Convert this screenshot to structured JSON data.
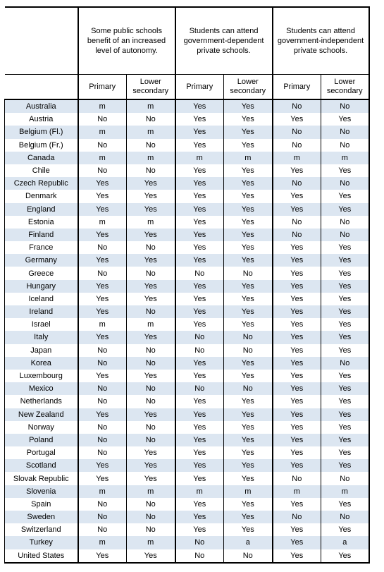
{
  "headers": {
    "groups": [
      "Some public schools benefit of an increased level of autonomy.",
      "Students can attend government-dependent private schools.",
      "Students can attend government-independent private schools."
    ],
    "sub": [
      "Primary",
      "Lower secondary",
      "Primary",
      "Lower secondary",
      "Primary",
      "Lower secondary"
    ]
  },
  "rows": [
    {
      "country": "Australia",
      "values": [
        "m",
        "m",
        "Yes",
        "Yes",
        "No",
        "No"
      ]
    },
    {
      "country": "Austria",
      "values": [
        "No",
        "No",
        "Yes",
        "Yes",
        "Yes",
        "Yes"
      ]
    },
    {
      "country": "Belgium (Fl.)",
      "values": [
        "m",
        "m",
        "Yes",
        "Yes",
        "No",
        "No"
      ]
    },
    {
      "country": "Belgium (Fr.)",
      "values": [
        "No",
        "No",
        "Yes",
        "Yes",
        "No",
        "No"
      ]
    },
    {
      "country": "Canada",
      "values": [
        "m",
        "m",
        "m",
        "m",
        "m",
        "m"
      ]
    },
    {
      "country": "Chile",
      "values": [
        "No",
        "No",
        "Yes",
        "Yes",
        "Yes",
        "Yes"
      ]
    },
    {
      "country": "Czech Republic",
      "values": [
        "Yes",
        "Yes",
        "Yes",
        "Yes",
        "No",
        "No"
      ]
    },
    {
      "country": "Denmark",
      "values": [
        "Yes",
        "Yes",
        "Yes",
        "Yes",
        "Yes",
        "Yes"
      ]
    },
    {
      "country": "England",
      "values": [
        "Yes",
        "Yes",
        "Yes",
        "Yes",
        "Yes",
        "Yes"
      ]
    },
    {
      "country": "Estonia",
      "values": [
        "m",
        "m",
        "Yes",
        "Yes",
        "No",
        "No"
      ]
    },
    {
      "country": "Finland",
      "values": [
        "Yes",
        "Yes",
        "Yes",
        "Yes",
        "No",
        "No"
      ]
    },
    {
      "country": "France",
      "values": [
        "No",
        "No",
        "Yes",
        "Yes",
        "Yes",
        "Yes"
      ]
    },
    {
      "country": "Germany",
      "values": [
        "Yes",
        "Yes",
        "Yes",
        "Yes",
        "Yes",
        "Yes"
      ]
    },
    {
      "country": "Greece",
      "values": [
        "No",
        "No",
        "No",
        "No",
        "Yes",
        "Yes"
      ]
    },
    {
      "country": "Hungary",
      "values": [
        "Yes",
        "Yes",
        "Yes",
        "Yes",
        "Yes",
        "Yes"
      ]
    },
    {
      "country": "Iceland",
      "values": [
        "Yes",
        "Yes",
        "Yes",
        "Yes",
        "Yes",
        "Yes"
      ]
    },
    {
      "country": "Ireland",
      "values": [
        "Yes",
        "No",
        "Yes",
        "Yes",
        "Yes",
        "Yes"
      ]
    },
    {
      "country": "Israel",
      "values": [
        "m",
        "m",
        "Yes",
        "Yes",
        "Yes",
        "Yes"
      ]
    },
    {
      "country": "Italy",
      "values": [
        "Yes",
        "Yes",
        "No",
        "No",
        "Yes",
        "Yes"
      ]
    },
    {
      "country": "Japan",
      "values": [
        "No",
        "No",
        "No",
        "No",
        "Yes",
        "Yes"
      ]
    },
    {
      "country": "Korea",
      "values": [
        "No",
        "No",
        "Yes",
        "Yes",
        "Yes",
        "No"
      ]
    },
    {
      "country": "Luxembourg",
      "values": [
        "Yes",
        "Yes",
        "Yes",
        "Yes",
        "Yes",
        "Yes"
      ]
    },
    {
      "country": "Mexico",
      "values": [
        "No",
        "No",
        "No",
        "No",
        "Yes",
        "Yes"
      ]
    },
    {
      "country": "Netherlands",
      "values": [
        "No",
        "No",
        "Yes",
        "Yes",
        "Yes",
        "Yes"
      ]
    },
    {
      "country": "New Zealand",
      "values": [
        "Yes",
        "Yes",
        "Yes",
        "Yes",
        "Yes",
        "Yes"
      ]
    },
    {
      "country": "Norway",
      "values": [
        "No",
        "No",
        "Yes",
        "Yes",
        "Yes",
        "Yes"
      ]
    },
    {
      "country": "Poland",
      "values": [
        "No",
        "No",
        "Yes",
        "Yes",
        "Yes",
        "Yes"
      ]
    },
    {
      "country": "Portugal",
      "values": [
        "No",
        "Yes",
        "Yes",
        "Yes",
        "Yes",
        "Yes"
      ]
    },
    {
      "country": "Scotland",
      "values": [
        "Yes",
        "Yes",
        "Yes",
        "Yes",
        "Yes",
        "Yes"
      ]
    },
    {
      "country": "Slovak Republic",
      "values": [
        "Yes",
        "Yes",
        "Yes",
        "Yes",
        "No",
        "No"
      ]
    },
    {
      "country": "Slovenia",
      "values": [
        "m",
        "m",
        "m",
        "m",
        "m",
        "m"
      ]
    },
    {
      "country": "Spain",
      "values": [
        "No",
        "No",
        "Yes",
        "Yes",
        "Yes",
        "Yes"
      ]
    },
    {
      "country": "Sweden",
      "values": [
        "No",
        "No",
        "Yes",
        "Yes",
        "No",
        "No"
      ]
    },
    {
      "country": "Switzerland",
      "values": [
        "No",
        "No",
        "Yes",
        "Yes",
        "Yes",
        "Yes"
      ]
    },
    {
      "country": "Turkey",
      "values": [
        "m",
        "m",
        "No",
        "a",
        "Yes",
        "a"
      ]
    },
    {
      "country": "United States",
      "values": [
        "Yes",
        "Yes",
        "No",
        "No",
        "Yes",
        "Yes"
      ]
    }
  ],
  "colors": {
    "stripe": "#dce6f1",
    "border": "#000000"
  }
}
